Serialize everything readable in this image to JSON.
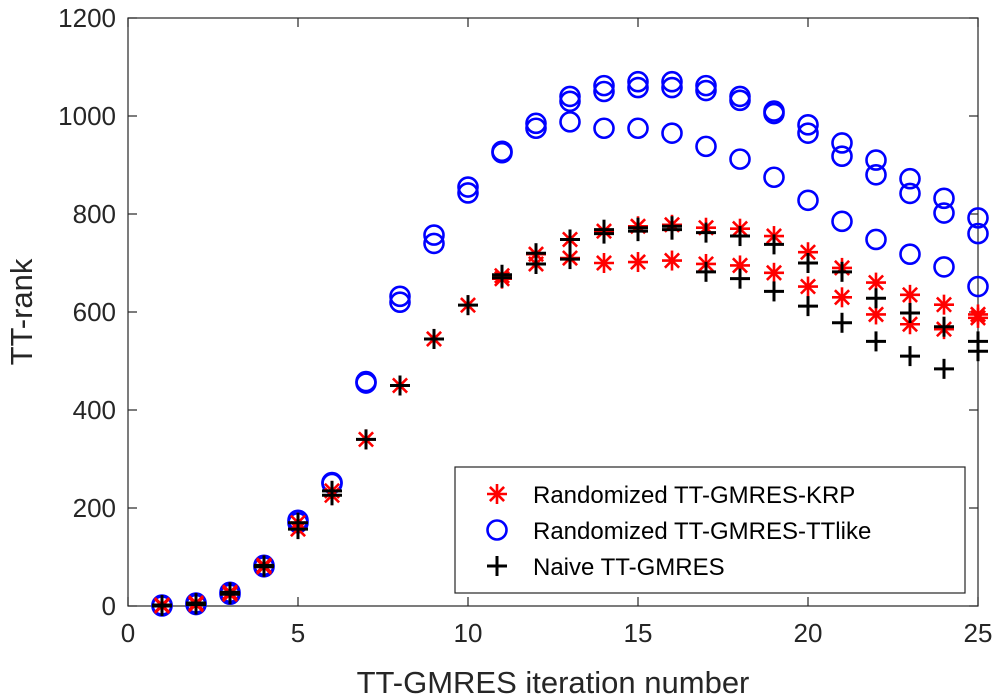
{
  "chart_data": {
    "type": "scatter",
    "title": "",
    "xlabel": "TT-GMRES iteration number",
    "ylabel": "TT-rank",
    "xlim": [
      0,
      25
    ],
    "ylim": [
      0,
      1200
    ],
    "xticks": [
      0,
      5,
      10,
      15,
      20,
      25
    ],
    "yticks": [
      0,
      200,
      400,
      600,
      800,
      1000,
      1200
    ],
    "grid": false,
    "legend_position": "bottom-right",
    "series": [
      {
        "name": "Randomized TT-GMRES-KRP",
        "marker": "asterisk",
        "color": "#ff0000",
        "points": [
          [
            1,
            0
          ],
          [
            1,
            2
          ],
          [
            2,
            3
          ],
          [
            2,
            6
          ],
          [
            3,
            24
          ],
          [
            3,
            28
          ],
          [
            4,
            80
          ],
          [
            4,
            83
          ],
          [
            5,
            157
          ],
          [
            5,
            170
          ],
          [
            6,
            226
          ],
          [
            6,
            235
          ],
          [
            7,
            340
          ],
          [
            8,
            450
          ],
          [
            9,
            545
          ],
          [
            10,
            614
          ],
          [
            11,
            668
          ],
          [
            11,
            674
          ],
          [
            12,
            698
          ],
          [
            12,
            718
          ],
          [
            13,
            710
          ],
          [
            13,
            748
          ],
          [
            14,
            700
          ],
          [
            14,
            765
          ],
          [
            15,
            702
          ],
          [
            15,
            775
          ],
          [
            16,
            705
          ],
          [
            16,
            778
          ],
          [
            17,
            698
          ],
          [
            17,
            772
          ],
          [
            18,
            695
          ],
          [
            18,
            770
          ],
          [
            19,
            680
          ],
          [
            19,
            755
          ],
          [
            20,
            652
          ],
          [
            20,
            722
          ],
          [
            21,
            630
          ],
          [
            21,
            690
          ],
          [
            22,
            595
          ],
          [
            22,
            660
          ],
          [
            23,
            575
          ],
          [
            23,
            635
          ],
          [
            24,
            565
          ],
          [
            24,
            615
          ],
          [
            25,
            588
          ],
          [
            25,
            595
          ]
        ]
      },
      {
        "name": "Randomized TT-GMRES-TTlike",
        "marker": "circle",
        "color": "#0000ff",
        "points": [
          [
            1,
            0
          ],
          [
            1,
            2
          ],
          [
            2,
            3
          ],
          [
            2,
            6
          ],
          [
            3,
            24
          ],
          [
            3,
            28
          ],
          [
            4,
            80
          ],
          [
            4,
            83
          ],
          [
            5,
            170
          ],
          [
            5,
            175
          ],
          [
            6,
            250
          ],
          [
            6,
            252
          ],
          [
            7,
            455
          ],
          [
            7,
            458
          ],
          [
            8,
            620
          ],
          [
            8,
            632
          ],
          [
            9,
            740
          ],
          [
            9,
            757
          ],
          [
            10,
            843
          ],
          [
            10,
            855
          ],
          [
            11,
            925
          ],
          [
            11,
            928
          ],
          [
            12,
            975
          ],
          [
            12,
            985
          ],
          [
            13,
            988
          ],
          [
            13,
            1030
          ],
          [
            13,
            1040
          ],
          [
            14,
            975
          ],
          [
            14,
            1050
          ],
          [
            14,
            1062
          ],
          [
            15,
            975
          ],
          [
            15,
            1058
          ],
          [
            15,
            1070
          ],
          [
            16,
            965
          ],
          [
            16,
            1058
          ],
          [
            16,
            1070
          ],
          [
            17,
            938
          ],
          [
            17,
            1052
          ],
          [
            17,
            1062
          ],
          [
            18,
            912
          ],
          [
            18,
            1032
          ],
          [
            18,
            1040
          ],
          [
            19,
            875
          ],
          [
            19,
            1005
          ],
          [
            19,
            1010
          ],
          [
            20,
            828
          ],
          [
            20,
            965
          ],
          [
            20,
            982
          ],
          [
            21,
            785
          ],
          [
            21,
            918
          ],
          [
            21,
            945
          ],
          [
            22,
            748
          ],
          [
            22,
            880
          ],
          [
            22,
            910
          ],
          [
            23,
            718
          ],
          [
            23,
            842
          ],
          [
            23,
            872
          ],
          [
            24,
            692
          ],
          [
            24,
            802
          ],
          [
            24,
            832
          ],
          [
            25,
            652
          ],
          [
            25,
            760
          ],
          [
            25,
            792
          ]
        ]
      },
      {
        "name": "Naive TT-GMRES",
        "marker": "plus",
        "color": "#000000",
        "points": [
          [
            1,
            0
          ],
          [
            1,
            2
          ],
          [
            2,
            3
          ],
          [
            2,
            6
          ],
          [
            3,
            24
          ],
          [
            3,
            28
          ],
          [
            4,
            80
          ],
          [
            4,
            83
          ],
          [
            5,
            157
          ],
          [
            5,
            170
          ],
          [
            6,
            226
          ],
          [
            6,
            235
          ],
          [
            7,
            340
          ],
          [
            8,
            450
          ],
          [
            9,
            545
          ],
          [
            10,
            614
          ],
          [
            11,
            670
          ],
          [
            11,
            676
          ],
          [
            12,
            698
          ],
          [
            12,
            720
          ],
          [
            13,
            708
          ],
          [
            13,
            748
          ],
          [
            14,
            760
          ],
          [
            14,
            768
          ],
          [
            15,
            765
          ],
          [
            15,
            772
          ],
          [
            16,
            768
          ],
          [
            16,
            775
          ],
          [
            17,
            682
          ],
          [
            17,
            762
          ],
          [
            18,
            668
          ],
          [
            18,
            755
          ],
          [
            19,
            642
          ],
          [
            19,
            738
          ],
          [
            20,
            612
          ],
          [
            20,
            700
          ],
          [
            21,
            578
          ],
          [
            21,
            682
          ],
          [
            22,
            540
          ],
          [
            22,
            628
          ],
          [
            23,
            510
          ],
          [
            23,
            598
          ],
          [
            24,
            484
          ],
          [
            24,
            570
          ],
          [
            25,
            520
          ],
          [
            25,
            540
          ]
        ]
      }
    ]
  }
}
